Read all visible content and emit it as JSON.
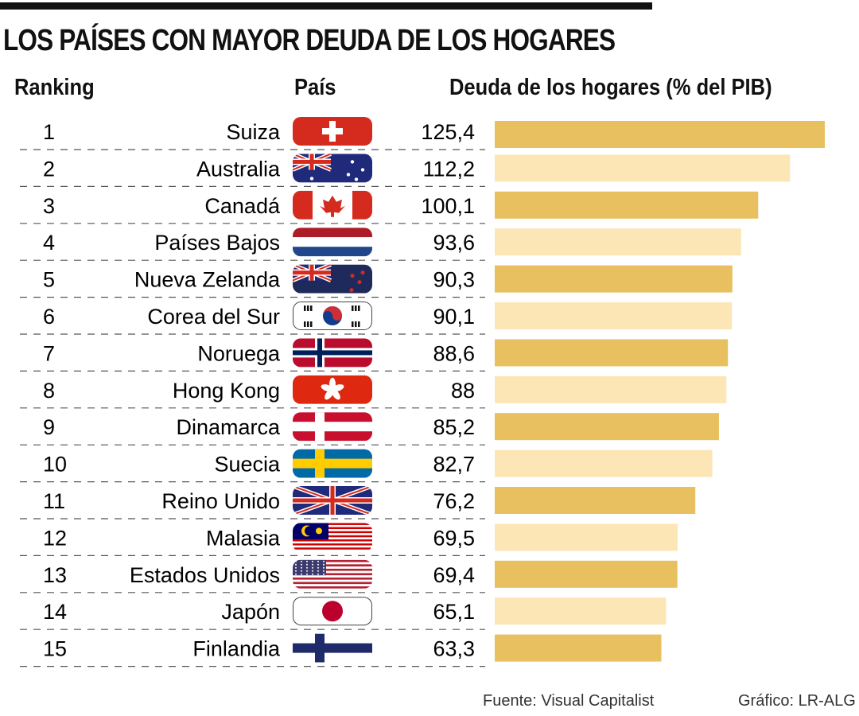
{
  "title": "LOS PAÍSES CON MAYOR DEUDA DE LOS HOGARES",
  "headers": {
    "rank": "Ranking",
    "country": "País",
    "value": "Deuda de los hogares (% del PIB)"
  },
  "footer": {
    "source": "Fuente:  Visual Capitalist",
    "credit": "Gráfico: LR-ALG"
  },
  "colors": {
    "bar_dark": "#E8C05F",
    "bar_light": "#FDE6B6",
    "title_bar": "#111111"
  },
  "chart_data": {
    "type": "bar",
    "orientation": "horizontal",
    "ylabel": "Deuda de los hogares (% del PIB)",
    "rows": [
      {
        "rank": "1",
        "country": "Suiza",
        "flag": "ch",
        "value": 125.4,
        "label": "125,4"
      },
      {
        "rank": "2",
        "country": "Australia",
        "flag": "au",
        "value": 112.2,
        "label": "112,2"
      },
      {
        "rank": "3",
        "country": "Canadá",
        "flag": "ca",
        "value": 100.1,
        "label": "100,1"
      },
      {
        "rank": "4",
        "country": "Países Bajos",
        "flag": "nl",
        "value": 93.6,
        "label": "93,6"
      },
      {
        "rank": "5",
        "country": "Nueva Zelanda",
        "flag": "nz",
        "value": 90.3,
        "label": "90,3"
      },
      {
        "rank": "6",
        "country": "Corea del Sur",
        "flag": "kr",
        "value": 90.1,
        "label": "90,1"
      },
      {
        "rank": "7",
        "country": "Noruega",
        "flag": "no",
        "value": 88.6,
        "label": "88,6"
      },
      {
        "rank": "8",
        "country": "Hong Kong",
        "flag": "hk",
        "value": 88,
        "label": "88"
      },
      {
        "rank": "9",
        "country": "Dinamarca",
        "flag": "dk",
        "value": 85.2,
        "label": "85,2"
      },
      {
        "rank": "10",
        "country": "Suecia",
        "flag": "se",
        "value": 82.7,
        "label": "82,7"
      },
      {
        "rank": "11",
        "country": "Reino Unido",
        "flag": "gb",
        "value": 76.2,
        "label": "76,2"
      },
      {
        "rank": "12",
        "country": "Malasia",
        "flag": "my",
        "value": 69.5,
        "label": "69,5"
      },
      {
        "rank": "13",
        "country": "Estados Unidos",
        "flag": "us",
        "value": 69.4,
        "label": "69,4"
      },
      {
        "rank": "14",
        "country": "Japón",
        "flag": "jp",
        "value": 65.1,
        "label": "65,1"
      },
      {
        "rank": "15",
        "country": "Finlandia",
        "flag": "fi",
        "value": 63.3,
        "label": "63,3"
      }
    ]
  }
}
